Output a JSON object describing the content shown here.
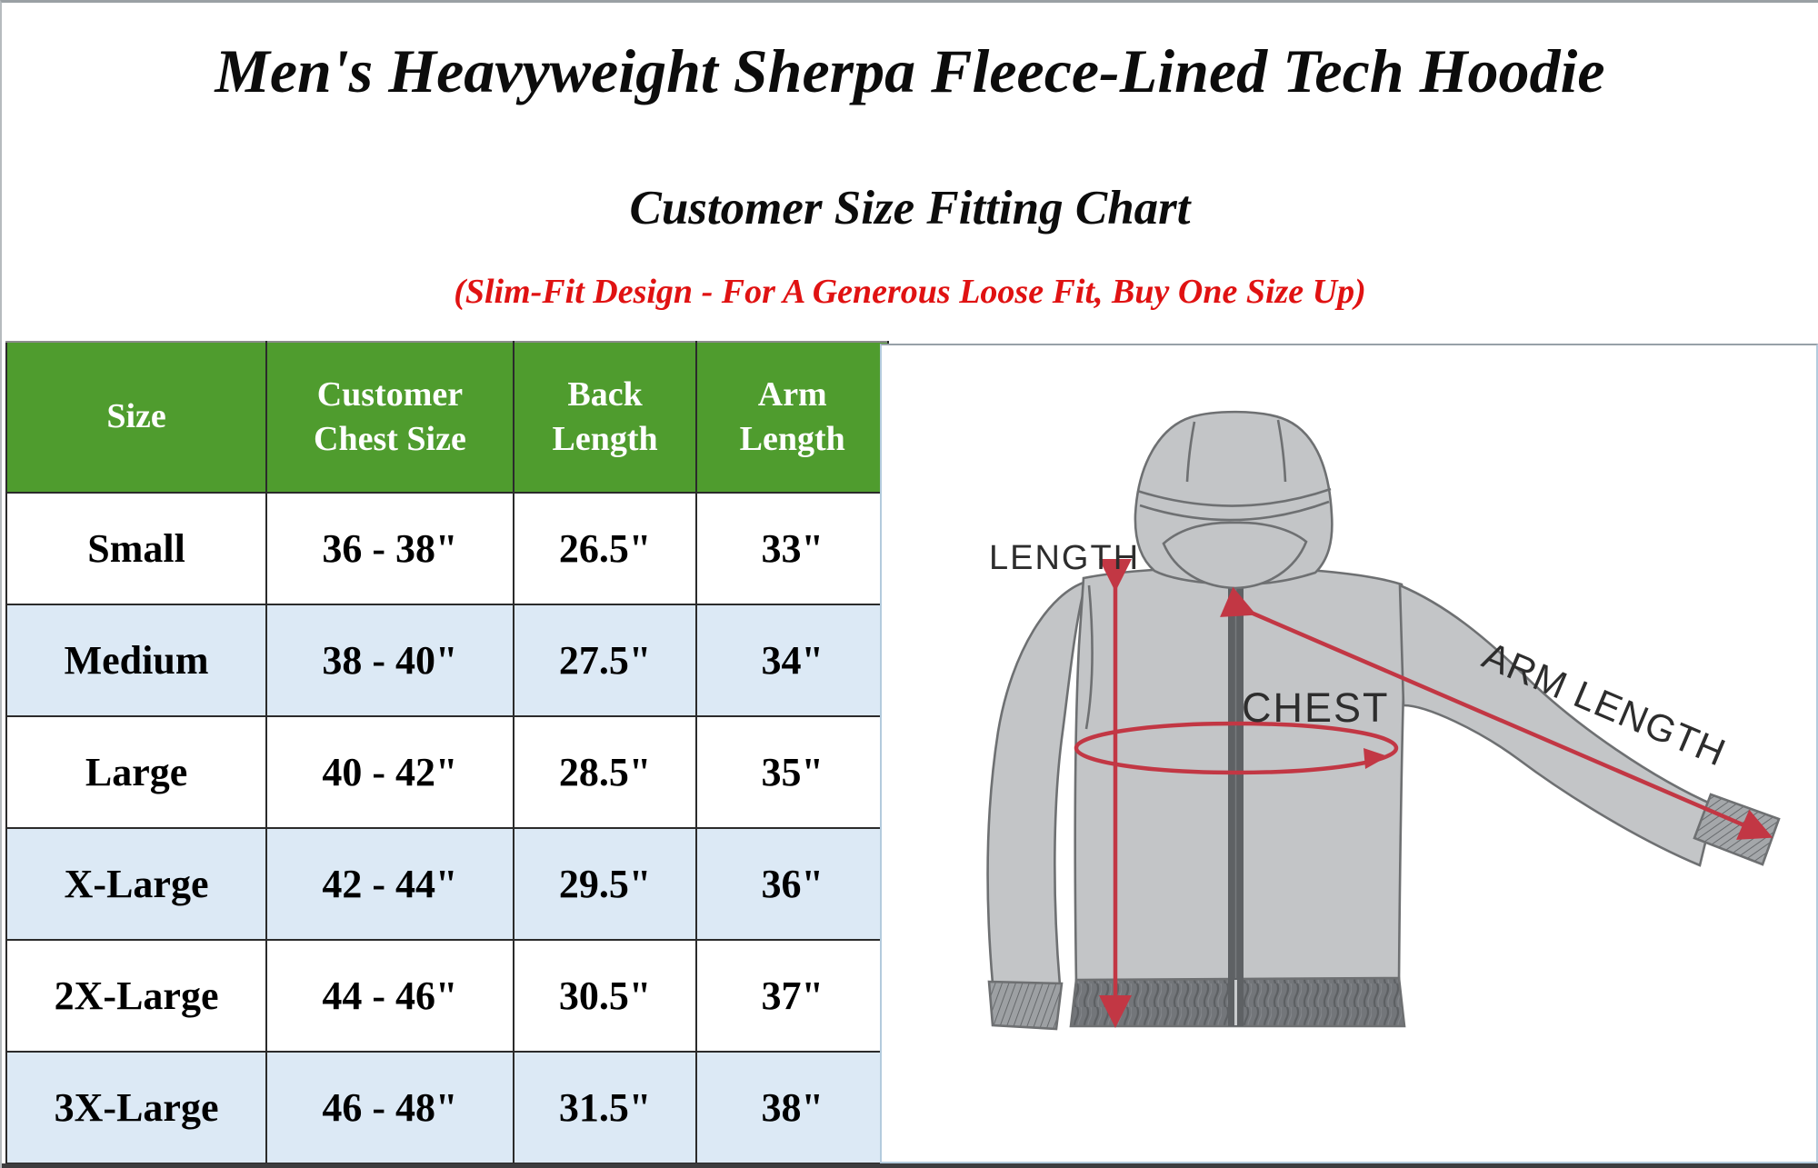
{
  "page": {
    "title": "Men's Heavyweight Sherpa Fleece-Lined Tech Hoodie",
    "subtitle": "Customer Size Fitting Chart",
    "note": "(Slim-Fit Design - For A Generous Loose Fit, Buy One Size Up)"
  },
  "colors": {
    "header_green": "#4f9c2e",
    "row_blue": "#dce9f5",
    "note_red": "#e01212",
    "annotation_red": "#c23744",
    "hoodie_gray": "#c3c5c7",
    "hem_gray": "#73767a",
    "panel_border_blue": "#b3cbdd",
    "table_border": "#2b2b2b"
  },
  "chart_data": {
    "type": "table",
    "title": "Customer Size Fitting Chart",
    "columns": [
      "Size",
      "Customer Chest Size",
      "Back Length",
      "Arm Length"
    ],
    "rows": [
      [
        "Small",
        "36 - 38\"",
        "26.5\"",
        "33\""
      ],
      [
        "Medium",
        "38 - 40\"",
        "27.5\"",
        "34\""
      ],
      [
        "Large",
        "40 - 42\"",
        "28.5\"",
        "35\""
      ],
      [
        "X-Large",
        "42 - 44\"",
        "29.5\"",
        "36\""
      ],
      [
        "2X-Large",
        "44 - 46\"",
        "30.5\"",
        "37\""
      ],
      [
        "3X-Large",
        "46 - 48\"",
        "31.5\"",
        "38\""
      ]
    ]
  },
  "size_table": {
    "headers": [
      "Size",
      "Customer Chest Size",
      "Back Length",
      "Arm Length"
    ],
    "rows": [
      [
        "Small",
        "36 - 38\"",
        "26.5\"",
        "33\""
      ],
      [
        "Medium",
        "38 - 40\"",
        "27.5\"",
        "34\""
      ],
      [
        "Large",
        "40 - 42\"",
        "28.5\"",
        "35\""
      ],
      [
        "X-Large",
        "42 - 44\"",
        "29.5\"",
        "36\""
      ],
      [
        "2X-Large",
        "44 - 46\"",
        "30.5\"",
        "37\""
      ],
      [
        "3X-Large",
        "46 - 48\"",
        "31.5\"",
        "38\""
      ]
    ]
  },
  "diagram": {
    "labels": {
      "length": "LENGTH",
      "chest": "CHEST",
      "arm_length": "ARM LENGTH"
    }
  }
}
